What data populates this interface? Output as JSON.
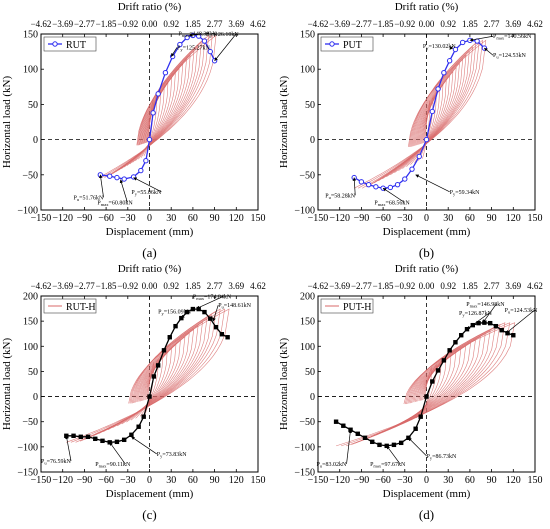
{
  "figure": {
    "colors": {
      "axis": "#000000",
      "hyst": "#d86a6a",
      "envelope_blue": "#2f2ff0",
      "envelope_black": "#000000",
      "annotation": "#c0392b"
    }
  },
  "chart_data": [
    {
      "panel_label": "(a)",
      "type": "line",
      "top_axis_title": "Drift ratio (%)",
      "top_ticks": [
        "−4.62",
        "−3.69",
        "−2.77",
        "−1.85",
        "−0.92",
        "0.00",
        "0.92",
        "1.85",
        "2.77",
        "3.69",
        "4.62"
      ],
      "xlabel": "Displacement (mm)",
      "ylabel": "Horizontal load (kN)",
      "xlim": [
        -150,
        150
      ],
      "ylim": [
        -100,
        150
      ],
      "xticks": [
        -150,
        -120,
        -90,
        -60,
        -30,
        0,
        30,
        60,
        90,
        120,
        150
      ],
      "yticks": [
        -100,
        -50,
        0,
        50,
        100,
        150
      ],
      "legend": "RUT",
      "legend_style": "blue",
      "envelope": {
        "x": [
          -68,
          -55,
          -45,
          -35,
          -22,
          -12,
          -5,
          0,
          5,
          12,
          22,
          32,
          42,
          52,
          60,
          68,
          76,
          84,
          90
        ],
        "y": [
          -50,
          -52,
          -54,
          -56,
          -53,
          -44,
          -30,
          0,
          38,
          65,
          95,
          118,
          135,
          145,
          148,
          147,
          140,
          125,
          112
        ]
      },
      "hysteresis": {
        "cycles": 18,
        "neg_x": -70,
        "neg_y": -54,
        "pos_x": 92,
        "pos_y": 148
      },
      "annotations": [
        {
          "text": "P_max=148.38kN",
          "x": 40,
          "y": 148,
          "lx": 55,
          "ly": 148
        },
        {
          "text": "P_u=126.10kN",
          "x": 78,
          "y": 147,
          "lx": 90,
          "ly": 112
        },
        {
          "text": "P_y=125.27kN",
          "x": 38,
          "y": 128,
          "lx": 30,
          "ly": 118
        },
        {
          "text": "P_u=51.76kN",
          "x": -105,
          "y": -85,
          "lx": -68,
          "ly": -50
        },
        {
          "text": "P_max=60.80kN",
          "x": -72,
          "y": -92,
          "lx": -40,
          "ly": -57
        },
        {
          "text": "P_y=55.06kN",
          "x": -25,
          "y": -77,
          "lx": -22,
          "ly": -54
        }
      ]
    },
    {
      "panel_label": "(b)",
      "type": "line",
      "top_axis_title": "Drift ratio (%)",
      "top_ticks": [
        "−4.62",
        "−3.69",
        "−2.77",
        "−1.85",
        "−0.92",
        "0.00",
        "0.92",
        "1.85",
        "2.77",
        "3.69",
        "4.62"
      ],
      "xlabel": "Displacement (mm)",
      "ylabel": "Horizontal load (kN)",
      "xlim": [
        -150,
        150
      ],
      "ylim": [
        -100,
        150
      ],
      "xticks": [
        -150,
        -120,
        -90,
        -60,
        -30,
        0,
        30,
        60,
        90,
        120,
        150
      ],
      "yticks": [
        -100,
        -50,
        0,
        50,
        100,
        150
      ],
      "legend": "PUT",
      "legend_style": "blue",
      "envelope": {
        "x": [
          -100,
          -90,
          -80,
          -70,
          -60,
          -50,
          -40,
          -30,
          -20,
          -10,
          0,
          8,
          16,
          24,
          32,
          40,
          50,
          60,
          70,
          80
        ],
        "y": [
          -54,
          -60,
          -64,
          -67,
          -69,
          -68,
          -64,
          -56,
          -42,
          -24,
          0,
          40,
          72,
          95,
          112,
          128,
          138,
          141,
          140,
          130
        ]
      },
      "hysteresis": {
        "cycles": 18,
        "neg_x": -100,
        "neg_y": -69,
        "pos_x": 82,
        "pos_y": 141
      },
      "annotations": [
        {
          "text": "P_y=130.02kN",
          "x": -5,
          "y": 130,
          "lx": 32,
          "ly": 128
        },
        {
          "text": "P_max=140.56kN",
          "x": 92,
          "y": 144,
          "lx": 60,
          "ly": 141
        },
        {
          "text": "P_u=124.53kN",
          "x": 92,
          "y": 117,
          "lx": 80,
          "ly": 130
        },
        {
          "text": "P_u=58.28kN",
          "x": -140,
          "y": -82,
          "lx": -100,
          "ly": -54
        },
        {
          "text": "P_max=68.56kN",
          "x": -72,
          "y": -92,
          "lx": -60,
          "ly": -69
        },
        {
          "text": "P_y=59.34kN",
          "x": 32,
          "y": -77,
          "lx": -15,
          "ly": -50
        }
      ]
    },
    {
      "panel_label": "(c)",
      "type": "line",
      "top_axis_title": "Drift ratio (%)",
      "top_ticks": [
        "−4.62",
        "−3.69",
        "−2.77",
        "−1.85",
        "−0.92",
        "0.00",
        "0.92",
        "1.85",
        "2.77",
        "3.69",
        "4.62"
      ],
      "xlabel": "Displacement (mm)",
      "ylabel": "Horizontal load (kN)",
      "xlim": [
        -150,
        150
      ],
      "ylim": [
        -150,
        200
      ],
      "xticks": [
        -150,
        -120,
        -90,
        -60,
        -30,
        0,
        30,
        60,
        90,
        120,
        150
      ],
      "yticks": [
        -150,
        -100,
        -50,
        0,
        50,
        100,
        150,
        200
      ],
      "legend": "RUT-H",
      "legend_style": "red",
      "envelope": {
        "x": [
          -115,
          -105,
          -95,
          -85,
          -75,
          -65,
          -55,
          -45,
          -35,
          -25,
          -15,
          -8,
          0,
          6,
          12,
          20,
          28,
          36,
          44,
          52,
          60,
          68,
          76,
          84,
          92,
          100,
          108
        ],
        "y": [
          -78,
          -78,
          -80,
          -80,
          -84,
          -88,
          -91,
          -90,
          -86,
          -76,
          -60,
          -40,
          0,
          40,
          62,
          92,
          118,
          140,
          156,
          168,
          174,
          174,
          168,
          155,
          138,
          124,
          118
        ]
      },
      "hysteresis": {
        "cycles": 18,
        "neg_x": -115,
        "neg_y": -91,
        "pos_x": 110,
        "pos_y": 174
      },
      "annotations": [
        {
          "text": "P_y=156.09kN",
          "x": 12,
          "y": 165,
          "lx": 44,
          "ly": 156
        },
        {
          "text": "P_max=174.84kN",
          "x": 60,
          "y": 195,
          "lx": 65,
          "ly": 175
        },
        {
          "text": "P_u=148.61kN",
          "x": 95,
          "y": 178,
          "lx": 88,
          "ly": 150
        },
        {
          "text": "P_u=76.59kN",
          "x": -150,
          "y": -132,
          "lx": -115,
          "ly": -78
        },
        {
          "text": "P_max=90.11kN",
          "x": -75,
          "y": -138,
          "lx": -55,
          "ly": -91
        },
        {
          "text": "P_y=73.83kN",
          "x": 10,
          "y": -118,
          "lx": -25,
          "ly": -80
        }
      ]
    },
    {
      "panel_label": "(d)",
      "type": "line",
      "top_axis_title": "Drift ratio (%)",
      "top_ticks": [
        "−4.62",
        "−3.69",
        "−2.77",
        "−1.85",
        "−0.92",
        "0.00",
        "0.92",
        "1.85",
        "2.77",
        "3.69",
        "4.62"
      ],
      "xlabel": "Displacement (mm)",
      "ylabel": "Horizontal load (kN)",
      "xlim": [
        -150,
        150
      ],
      "ylim": [
        -150,
        200
      ],
      "xticks": [
        -150,
        -120,
        -90,
        -60,
        -30,
        0,
        30,
        60,
        90,
        120,
        150
      ],
      "yticks": [
        -150,
        -100,
        -50,
        0,
        50,
        100,
        150,
        200
      ],
      "legend": "PUT-H",
      "legend_style": "red",
      "envelope": {
        "x": [
          -125,
          -115,
          -105,
          -95,
          -85,
          -75,
          -65,
          -55,
          -45,
          -35,
          -25,
          -15,
          -8,
          0,
          8,
          16,
          24,
          32,
          40,
          48,
          56,
          64,
          72,
          80,
          88,
          96,
          104,
          112,
          120
        ],
        "y": [
          -50,
          -58,
          -66,
          -74,
          -82,
          -90,
          -96,
          -98,
          -96,
          -92,
          -82,
          -64,
          -40,
          0,
          30,
          52,
          72,
          92,
          108,
          122,
          134,
          142,
          146,
          147,
          146,
          140,
          132,
          126,
          122
        ]
      },
      "hysteresis": {
        "cycles": 18,
        "neg_x": -125,
        "neg_y": -98,
        "pos_x": 122,
        "pos_y": 147
      },
      "annotations": [
        {
          "text": "P_max=146.98kN",
          "x": 55,
          "y": 180,
          "lx": 78,
          "ly": 147
        },
        {
          "text": "P_y=126.87kN",
          "x": 45,
          "y": 162,
          "lx": 56,
          "ly": 134
        },
        {
          "text": "P_u=124.53kN",
          "x": 108,
          "y": 168,
          "lx": 110,
          "ly": 126
        },
        {
          "text": "P_u=83.02kN",
          "x": -152,
          "y": -138,
          "lx": -105,
          "ly": -66
        },
        {
          "text": "P_max=97.67kN",
          "x": -78,
          "y": -138,
          "lx": -55,
          "ly": -98
        },
        {
          "text": "P_y=86.73kN",
          "x": 0,
          "y": -122,
          "lx": -25,
          "ly": -82
        }
      ]
    }
  ]
}
